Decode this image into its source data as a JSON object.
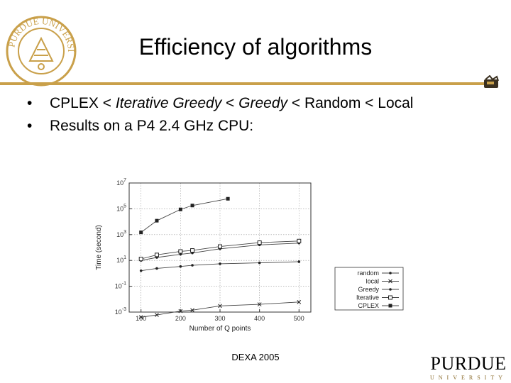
{
  "slide": {
    "title": "Efficiency of algorithms",
    "bullet_glyph": "•",
    "bullet1": {
      "parts": [
        "CPLEX < ",
        "Iterative Greedy",
        " < ",
        "Greedy",
        " < Random < Local"
      ]
    },
    "bullet2": "Results on a P4 2.4 GHz CPU:",
    "footer": "DEXA 2005",
    "logo_main": "PURDUE",
    "logo_sub": "UNIVERSITY",
    "seal_text": "PURDUE UNIVERSITY",
    "accent_color": "#c9a04a",
    "icons": [
      "university-seal-icon",
      "griffin-icon"
    ]
  },
  "chart_data": {
    "type": "line",
    "xlabel": "Number of Q points",
    "ylabel": "Time (second)",
    "x_ticks": [
      100,
      200,
      300,
      400,
      500
    ],
    "y_ticks_exp": [
      -3,
      -1,
      1,
      3,
      5,
      7
    ],
    "y_tick_base": "10",
    "xlim": [
      70,
      530
    ],
    "ylim_log10": [
      -3,
      7
    ],
    "yscale": "log",
    "grid": true,
    "legend_position": "bottom-right",
    "series": [
      {
        "name": "random",
        "marker": "dot",
        "x": [
          100,
          140,
          200,
          230,
          300,
          400,
          500
        ],
        "y": [
          1.6,
          2.4,
          3.4,
          4.2,
          5.5,
          6.5,
          8
        ]
      },
      {
        "name": "local",
        "marker": "cross",
        "x": [
          100,
          140,
          200,
          230,
          300,
          400,
          500
        ],
        "y": [
          0.0004,
          0.0006,
          0.0012,
          0.0014,
          0.003,
          0.004,
          0.006
        ]
      },
      {
        "name": "Greedy",
        "marker": "dot",
        "x": [
          100,
          140,
          200,
          230,
          300,
          400,
          500
        ],
        "y": [
          10,
          17,
          30,
          38,
          80,
          160,
          220
        ]
      },
      {
        "name": "Iterative",
        "marker": "square",
        "x": [
          100,
          140,
          200,
          230,
          300,
          400,
          500
        ],
        "y": [
          13,
          27,
          50,
          60,
          120,
          240,
          320
        ]
      },
      {
        "name": "CPLEX",
        "marker": "filled-square",
        "x": [
          100,
          140,
          200,
          230,
          320
        ],
        "y": [
          1500,
          12000,
          90000,
          180000,
          600000
        ]
      }
    ]
  }
}
